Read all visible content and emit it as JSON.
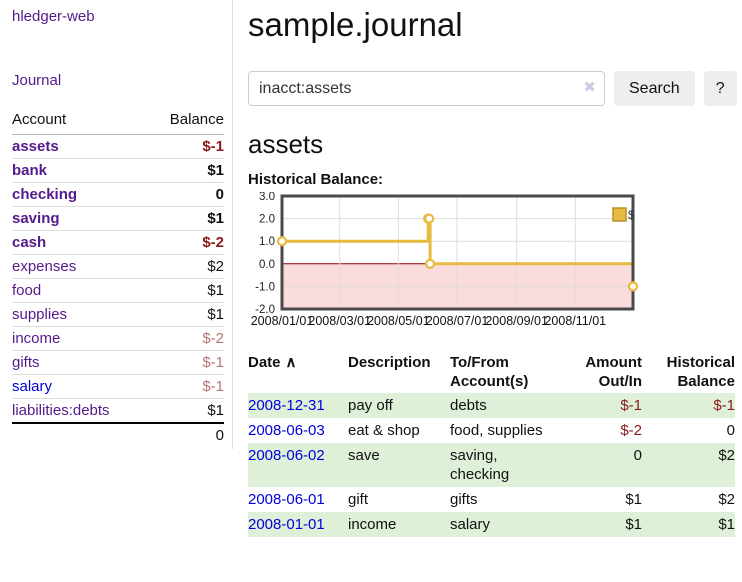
{
  "app": {
    "brand": "hledger-web",
    "nav_journal": "Journal"
  },
  "icons": {
    "clear": "✖",
    "sort_asc": "∧"
  },
  "colors": {
    "accent_purple": "#551a8b",
    "link_blue": "#0000dd",
    "negative_dark": "#8b1a1a",
    "negative_muted": "#b87272",
    "row_green": "#dff0d8",
    "chart_gold": "#e6bb3f"
  },
  "sidebar": {
    "header": {
      "account": "Account",
      "balance": "Balance"
    },
    "accounts": [
      {
        "name": "assets",
        "depth": 1,
        "bold": true,
        "link": "purple",
        "balance": "$-1",
        "balance_class": "neg"
      },
      {
        "name": "bank",
        "depth": 2,
        "bold": true,
        "link": "purple",
        "balance": "$1",
        "balance_class": "pos"
      },
      {
        "name": "checking",
        "depth": 3,
        "bold": true,
        "link": "purple",
        "balance": "0",
        "balance_class": "pos"
      },
      {
        "name": "saving",
        "depth": 3,
        "bold": true,
        "link": "purple",
        "balance": "$1",
        "balance_class": "pos"
      },
      {
        "name": "cash",
        "depth": 2,
        "bold": true,
        "link": "purple",
        "balance": "$-2",
        "balance_class": "neg"
      },
      {
        "name": "expenses",
        "depth": 1,
        "bold": false,
        "link": "purple",
        "balance": "$2",
        "balance_class": "pos"
      },
      {
        "name": "food",
        "depth": 2,
        "bold": false,
        "link": "purple",
        "balance": "$1",
        "balance_class": "pos"
      },
      {
        "name": "supplies",
        "depth": 2,
        "bold": false,
        "link": "purple",
        "balance": "$1",
        "balance_class": "pos"
      },
      {
        "name": "income",
        "depth": 1,
        "bold": false,
        "link": "purple",
        "balance": "$-2",
        "balance_class": "negm"
      },
      {
        "name": "gifts",
        "depth": 2,
        "bold": false,
        "link": "purple",
        "balance": "$-1",
        "balance_class": "negm"
      },
      {
        "name": "salary",
        "depth": 2,
        "bold": false,
        "link": "blue",
        "balance": "$-1",
        "balance_class": "negm"
      },
      {
        "name": "liabilities:debts",
        "depth": 1,
        "bold": false,
        "link": "purple",
        "balance": "$1",
        "balance_class": "pos"
      }
    ],
    "total": "0"
  },
  "main": {
    "title": "sample.journal",
    "search": {
      "value": "inacct:assets",
      "button_label": "Search",
      "help_label": "?"
    },
    "account_heading": "assets",
    "chart_label": "Historical Balance:"
  },
  "chart_data": {
    "type": "line",
    "title": "Historical Balance",
    "step": true,
    "grid": true,
    "legend_position": "top-right",
    "x_range": [
      "2008-01-01",
      "2008-12-31"
    ],
    "ylim": [
      -2,
      3
    ],
    "yticks": [
      "3.0",
      "2.0",
      "1.0",
      "0.0",
      "-1.0",
      "-2.0"
    ],
    "xticks": [
      "2008/01/01",
      "2008/03/01",
      "2008/05/01",
      "2008/07/01",
      "2008/09/01",
      "2008/11/01"
    ],
    "series": [
      {
        "name": "$",
        "color": "#e6bb3f",
        "points": [
          {
            "date": "2008-01-01",
            "value": 1
          },
          {
            "date": "2008-06-01",
            "value": 2
          },
          {
            "date": "2008-06-02",
            "value": 2
          },
          {
            "date": "2008-06-03",
            "value": 0
          },
          {
            "date": "2008-12-31",
            "value": -1
          }
        ]
      }
    ],
    "negative_region_color": "#fadcdc",
    "zero_line_color": "#8b0000"
  },
  "register": {
    "columns": [
      "Date",
      "Description",
      "To/From Account(s)",
      "Amount Out/In",
      "Historical Balance"
    ],
    "rows": [
      {
        "date": "2008-12-31",
        "description": "pay off",
        "accounts": "debts",
        "amount": "$-1",
        "amount_class": "neg",
        "balance": "$-1",
        "balance_class": "neg"
      },
      {
        "date": "2008-06-03",
        "description": "eat & shop",
        "accounts": "food, supplies",
        "amount": "$-2",
        "amount_class": "neg",
        "balance": "0",
        "balance_class": "pos"
      },
      {
        "date": "2008-06-02",
        "description": "save",
        "accounts": "saving, checking",
        "amount": "0",
        "amount_class": "pos",
        "balance": "$2",
        "balance_class": "pos"
      },
      {
        "date": "2008-06-01",
        "description": "gift",
        "accounts": "gifts",
        "amount": "$1",
        "amount_class": "pos",
        "balance": "$2",
        "balance_class": "pos"
      },
      {
        "date": "2008-01-01",
        "description": "income",
        "accounts": "salary",
        "amount": "$1",
        "amount_class": "pos",
        "balance": "$1",
        "balance_class": "pos"
      }
    ]
  }
}
